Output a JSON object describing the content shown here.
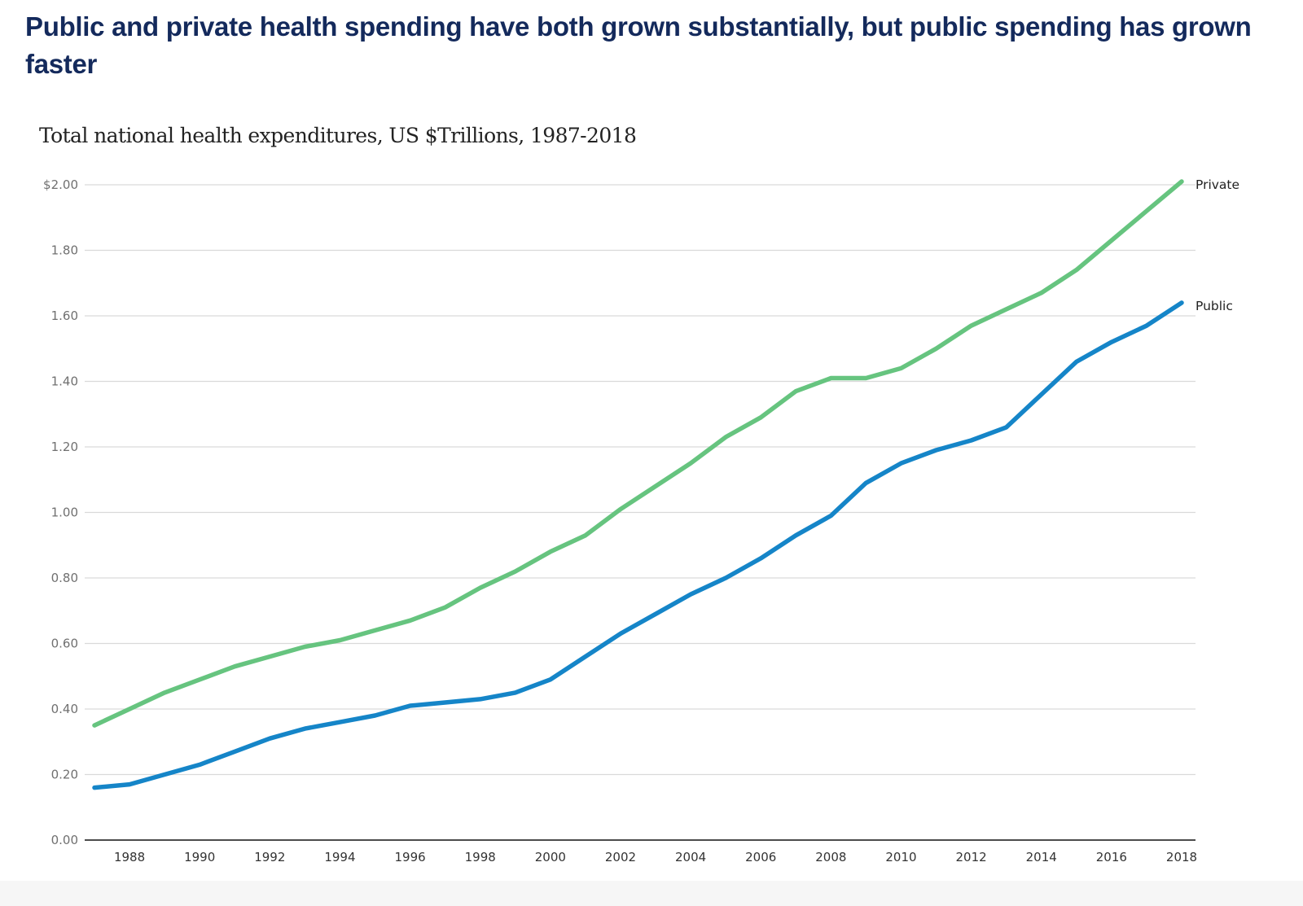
{
  "header": {
    "title": "Public and private health spending have both grown substantially, but public spending has grown faster"
  },
  "chart_data": {
    "type": "line",
    "title": "Public and private health spending have both grown substantially, but public spending has grown faster",
    "subtitle": "Total national health expenditures, US $Trillions, 1987-2018",
    "xlabel": "",
    "ylabel": "",
    "x": [
      1987,
      1988,
      1989,
      1990,
      1991,
      1992,
      1993,
      1994,
      1995,
      1996,
      1997,
      1998,
      1999,
      2000,
      2001,
      2002,
      2003,
      2004,
      2005,
      2006,
      2007,
      2008,
      2009,
      2010,
      2011,
      2012,
      2013,
      2014,
      2015,
      2016,
      2017,
      2018
    ],
    "xlim": [
      1987,
      2018
    ],
    "ylim": [
      0,
      2.0
    ],
    "x_ticks": [
      "1988",
      "1990",
      "1992",
      "1994",
      "1996",
      "1998",
      "2000",
      "2002",
      "2004",
      "2006",
      "2008",
      "2010",
      "2012",
      "2014",
      "2016",
      "2018"
    ],
    "y_ticks": [
      {
        "value": 0.0,
        "label": "0.00"
      },
      {
        "value": 0.2,
        "label": "0.20"
      },
      {
        "value": 0.4,
        "label": "0.40"
      },
      {
        "value": 0.6,
        "label": "0.60"
      },
      {
        "value": 0.8,
        "label": "0.80"
      },
      {
        "value": 1.0,
        "label": "1.00"
      },
      {
        "value": 1.2,
        "label": "1.20"
      },
      {
        "value": 1.4,
        "label": "1.40"
      },
      {
        "value": 1.6,
        "label": "1.60"
      },
      {
        "value": 1.8,
        "label": "1.80"
      },
      {
        "value": 2.0,
        "label": "$2.00"
      }
    ],
    "grid": true,
    "legend": "direct labels at line ends (right)",
    "series": [
      {
        "name": "Private",
        "color": "#66c47f",
        "values": [
          0.35,
          0.4,
          0.45,
          0.49,
          0.53,
          0.56,
          0.59,
          0.61,
          0.64,
          0.67,
          0.71,
          0.77,
          0.82,
          0.88,
          0.93,
          1.01,
          1.08,
          1.15,
          1.23,
          1.29,
          1.37,
          1.41,
          1.41,
          1.44,
          1.5,
          1.57,
          1.62,
          1.67,
          1.74,
          1.83,
          1.92,
          2.01
        ]
      },
      {
        "name": "Public",
        "color": "#1585c8",
        "values": [
          0.16,
          0.17,
          0.2,
          0.23,
          0.27,
          0.31,
          0.34,
          0.36,
          0.38,
          0.41,
          0.42,
          0.43,
          0.45,
          0.49,
          0.56,
          0.63,
          0.69,
          0.75,
          0.8,
          0.86,
          0.93,
          0.99,
          1.09,
          1.15,
          1.19,
          1.22,
          1.26,
          1.36,
          1.46,
          1.52,
          1.57,
          1.64
        ]
      }
    ]
  }
}
